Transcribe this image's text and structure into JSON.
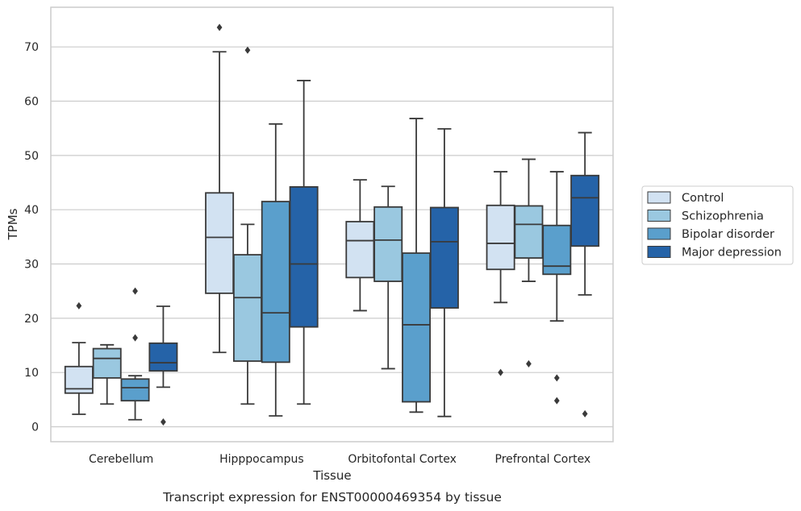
{
  "chart_data": {
    "type": "box",
    "ylabel": "TPMs",
    "xlabel": "Tissue",
    "caption": "Transcript expression for ENST00000469354 by tissue",
    "ylim": [
      -2.7,
      77.5
    ],
    "yticks": [
      0,
      10,
      20,
      30,
      40,
      50,
      60,
      70
    ],
    "grid": "horizontal",
    "legend_position": "right",
    "categories": [
      "Cerebellum",
      "Hipppocampus",
      "Orbitofontal Cortex",
      "Prefrontal Cortex"
    ],
    "series": [
      {
        "name": "Control",
        "color": "#d2e2f2",
        "boxes": [
          {
            "whislo": 2.3,
            "q1": 6.2,
            "med": 7.0,
            "q3": 11.1,
            "whishi": 15.5,
            "fliers": [
              22.3
            ]
          },
          {
            "whislo": 13.7,
            "q1": 24.6,
            "med": 34.9,
            "q3": 43.1,
            "whishi": 69.1,
            "fliers": [
              73.6
            ]
          },
          {
            "whislo": 21.4,
            "q1": 27.5,
            "med": 34.3,
            "q3": 37.8,
            "whishi": 45.5,
            "fliers": []
          },
          {
            "whislo": 22.9,
            "q1": 29.0,
            "med": 33.8,
            "q3": 40.8,
            "whishi": 47.0,
            "fliers": [
              10.0
            ]
          }
        ]
      },
      {
        "name": "Schizophrenia",
        "color": "#9ac8e0",
        "boxes": [
          {
            "whislo": 4.2,
            "q1": 9.0,
            "med": 12.6,
            "q3": 14.4,
            "whishi": 15.1,
            "fliers": []
          },
          {
            "whislo": 4.2,
            "q1": 12.1,
            "med": 23.8,
            "q3": 31.7,
            "whishi": 37.3,
            "fliers": [
              69.4
            ]
          },
          {
            "whislo": 10.7,
            "q1": 26.8,
            "med": 34.4,
            "q3": 40.5,
            "whishi": 44.3,
            "fliers": []
          },
          {
            "whislo": 26.8,
            "q1": 31.1,
            "med": 37.3,
            "q3": 40.7,
            "whishi": 49.3,
            "fliers": [
              11.6
            ]
          }
        ]
      },
      {
        "name": "Bipolar disorder",
        "color": "#5a9fcc",
        "boxes": [
          {
            "whislo": 1.3,
            "q1": 4.8,
            "med": 7.2,
            "q3": 8.8,
            "whishi": 9.4,
            "fliers": [
              16.4,
              25.0
            ]
          },
          {
            "whislo": 2.0,
            "q1": 11.9,
            "med": 21.0,
            "q3": 41.5,
            "whishi": 55.8,
            "fliers": []
          },
          {
            "whislo": 2.7,
            "q1": 4.6,
            "med": 18.8,
            "q3": 32.0,
            "whishi": 56.8,
            "fliers": []
          },
          {
            "whislo": 19.5,
            "q1": 28.1,
            "med": 29.6,
            "q3": 37.1,
            "whishi": 47.0,
            "fliers": [
              9.0,
              4.8
            ]
          }
        ]
      },
      {
        "name": "Major depression",
        "color": "#2563a8",
        "boxes": [
          {
            "whislo": 7.3,
            "q1": 10.3,
            "med": 11.8,
            "q3": 15.4,
            "whishi": 22.2,
            "fliers": [
              0.9
            ]
          },
          {
            "whislo": 4.2,
            "q1": 18.4,
            "med": 30.0,
            "q3": 44.2,
            "whishi": 63.8,
            "fliers": []
          },
          {
            "whislo": 1.9,
            "q1": 21.9,
            "med": 34.1,
            "q3": 40.4,
            "whishi": 54.9,
            "fliers": []
          },
          {
            "whislo": 24.3,
            "q1": 33.3,
            "med": 42.2,
            "q3": 46.3,
            "whishi": 54.2,
            "fliers": [
              2.4
            ]
          }
        ]
      }
    ]
  }
}
